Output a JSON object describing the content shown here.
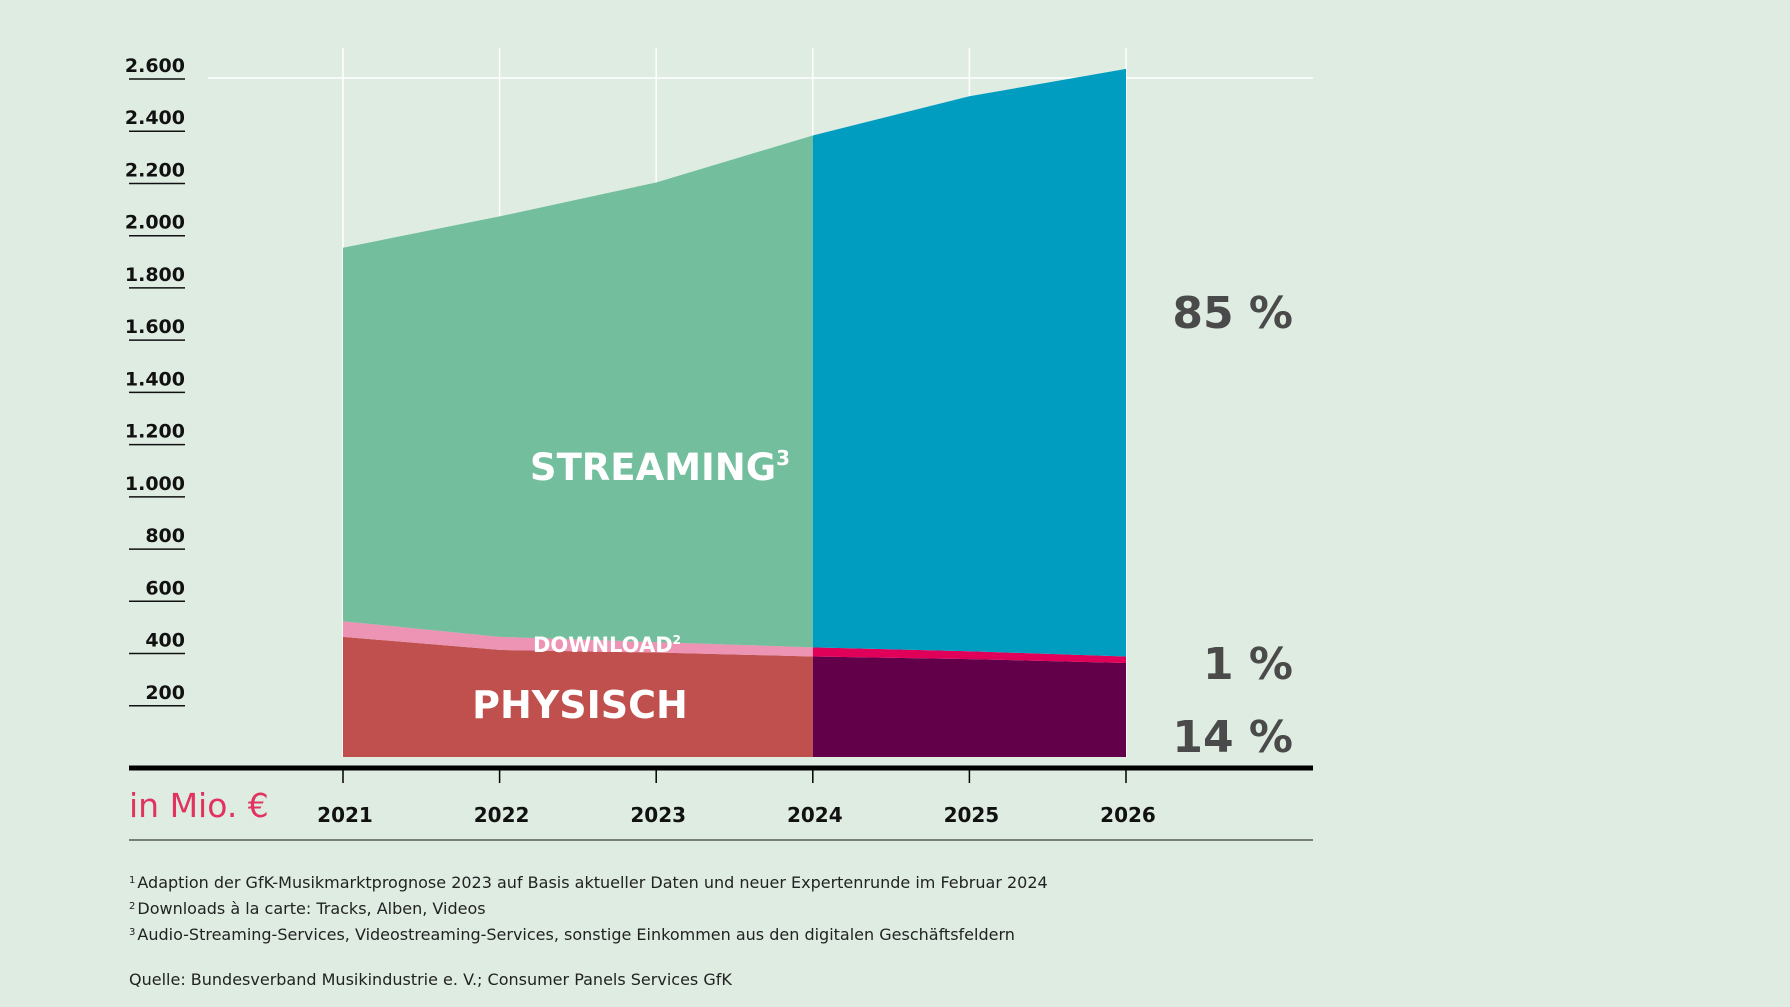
{
  "chart_data": {
    "type": "area",
    "stacked": true,
    "x": [
      "2021",
      "2022",
      "2023",
      "2024",
      "2025",
      "2026"
    ],
    "ylim": [
      0,
      2600
    ],
    "yticks": [
      "200",
      "400",
      "600",
      "800",
      "1.000",
      "1.200",
      "1.400",
      "1.600",
      "1.800",
      "2.000",
      "2.200",
      "2.400",
      "2.600"
    ],
    "ytick_values": [
      200,
      400,
      600,
      800,
      1000,
      1200,
      1400,
      1600,
      1800,
      2000,
      2200,
      2400,
      2600
    ],
    "unit_label": "in Mio. €",
    "forecast_from": "2024",
    "series": [
      {
        "id": "physisch",
        "label": "PHYSISCH",
        "values": [
          460,
          410,
          400,
          385,
          375,
          360
        ],
        "color": "#c0504d",
        "forecast_color": "#63004a",
        "share": "14 %"
      },
      {
        "id": "download",
        "label": "DOWNLOAD",
        "label_sup": "2",
        "values": [
          60,
          50,
          40,
          35,
          30,
          25
        ],
        "color": "#ed93b4",
        "forecast_color": "#e0005a",
        "share": "1 %"
      },
      {
        "id": "streaming",
        "label": "STREAMING",
        "label_sup": "3",
        "values": [
          1430,
          1610,
          1760,
          1960,
          2125,
          2250
        ],
        "color": "#73be9d",
        "forecast_color": "#009dc0",
        "share": "85 %"
      }
    ]
  },
  "footnotes": [
    {
      "num": "1",
      "text": "Adaption der GfK-Musikmarktprognose 2023 auf Basis aktueller Daten und neuer Expertenrunde im Februar 2024"
    },
    {
      "num": "2",
      "text": "Downloads à la carte: Tracks, Alben, Videos"
    },
    {
      "num": "3",
      "text": "Audio-Streaming-Services, Videostreaming-Services, sonstige Einkommen aus den digitalen Geschäftsfeldern"
    }
  ],
  "source": "Quelle: Bundesverband Musikindustrie e. V.; Consumer Panels Services GfK"
}
